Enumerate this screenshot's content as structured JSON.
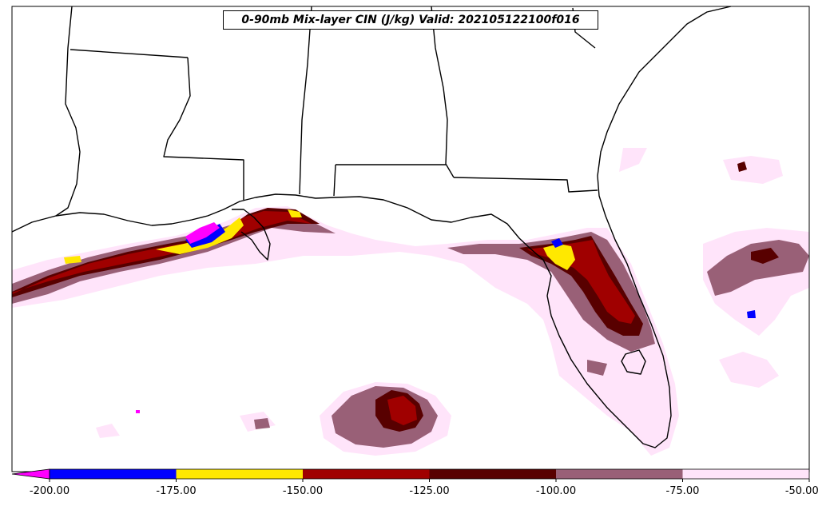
{
  "title": "0-90mb Mix-layer CIN (J/kg) Valid: 202105122100f016",
  "colorbar": {
    "extend_color": "#ff00ff",
    "bins": [
      {
        "from": -200,
        "to": -175,
        "color": "#0000ff"
      },
      {
        "from": -175,
        "to": -150,
        "color": "#ffe800"
      },
      {
        "from": -150,
        "to": -125,
        "color": "#a00000"
      },
      {
        "from": -125,
        "to": -100,
        "color": "#580000"
      },
      {
        "from": -100,
        "to": -75,
        "color": "#996077"
      },
      {
        "from": -75,
        "to": -50,
        "color": "#ffe4fa"
      }
    ],
    "ticks": [
      "-200.00",
      "-175.00",
      "-150.00",
      "-125.00",
      "-100.00",
      "-75.00",
      "-50.00"
    ]
  },
  "colors": {
    "magenta": "#ff00ff",
    "blue": "#0000ff",
    "yellow": "#ffe800",
    "red": "#a00000",
    "dark_red": "#580000",
    "mauve": "#996077",
    "pink": "#ffe4fa",
    "border": "#000000"
  }
}
